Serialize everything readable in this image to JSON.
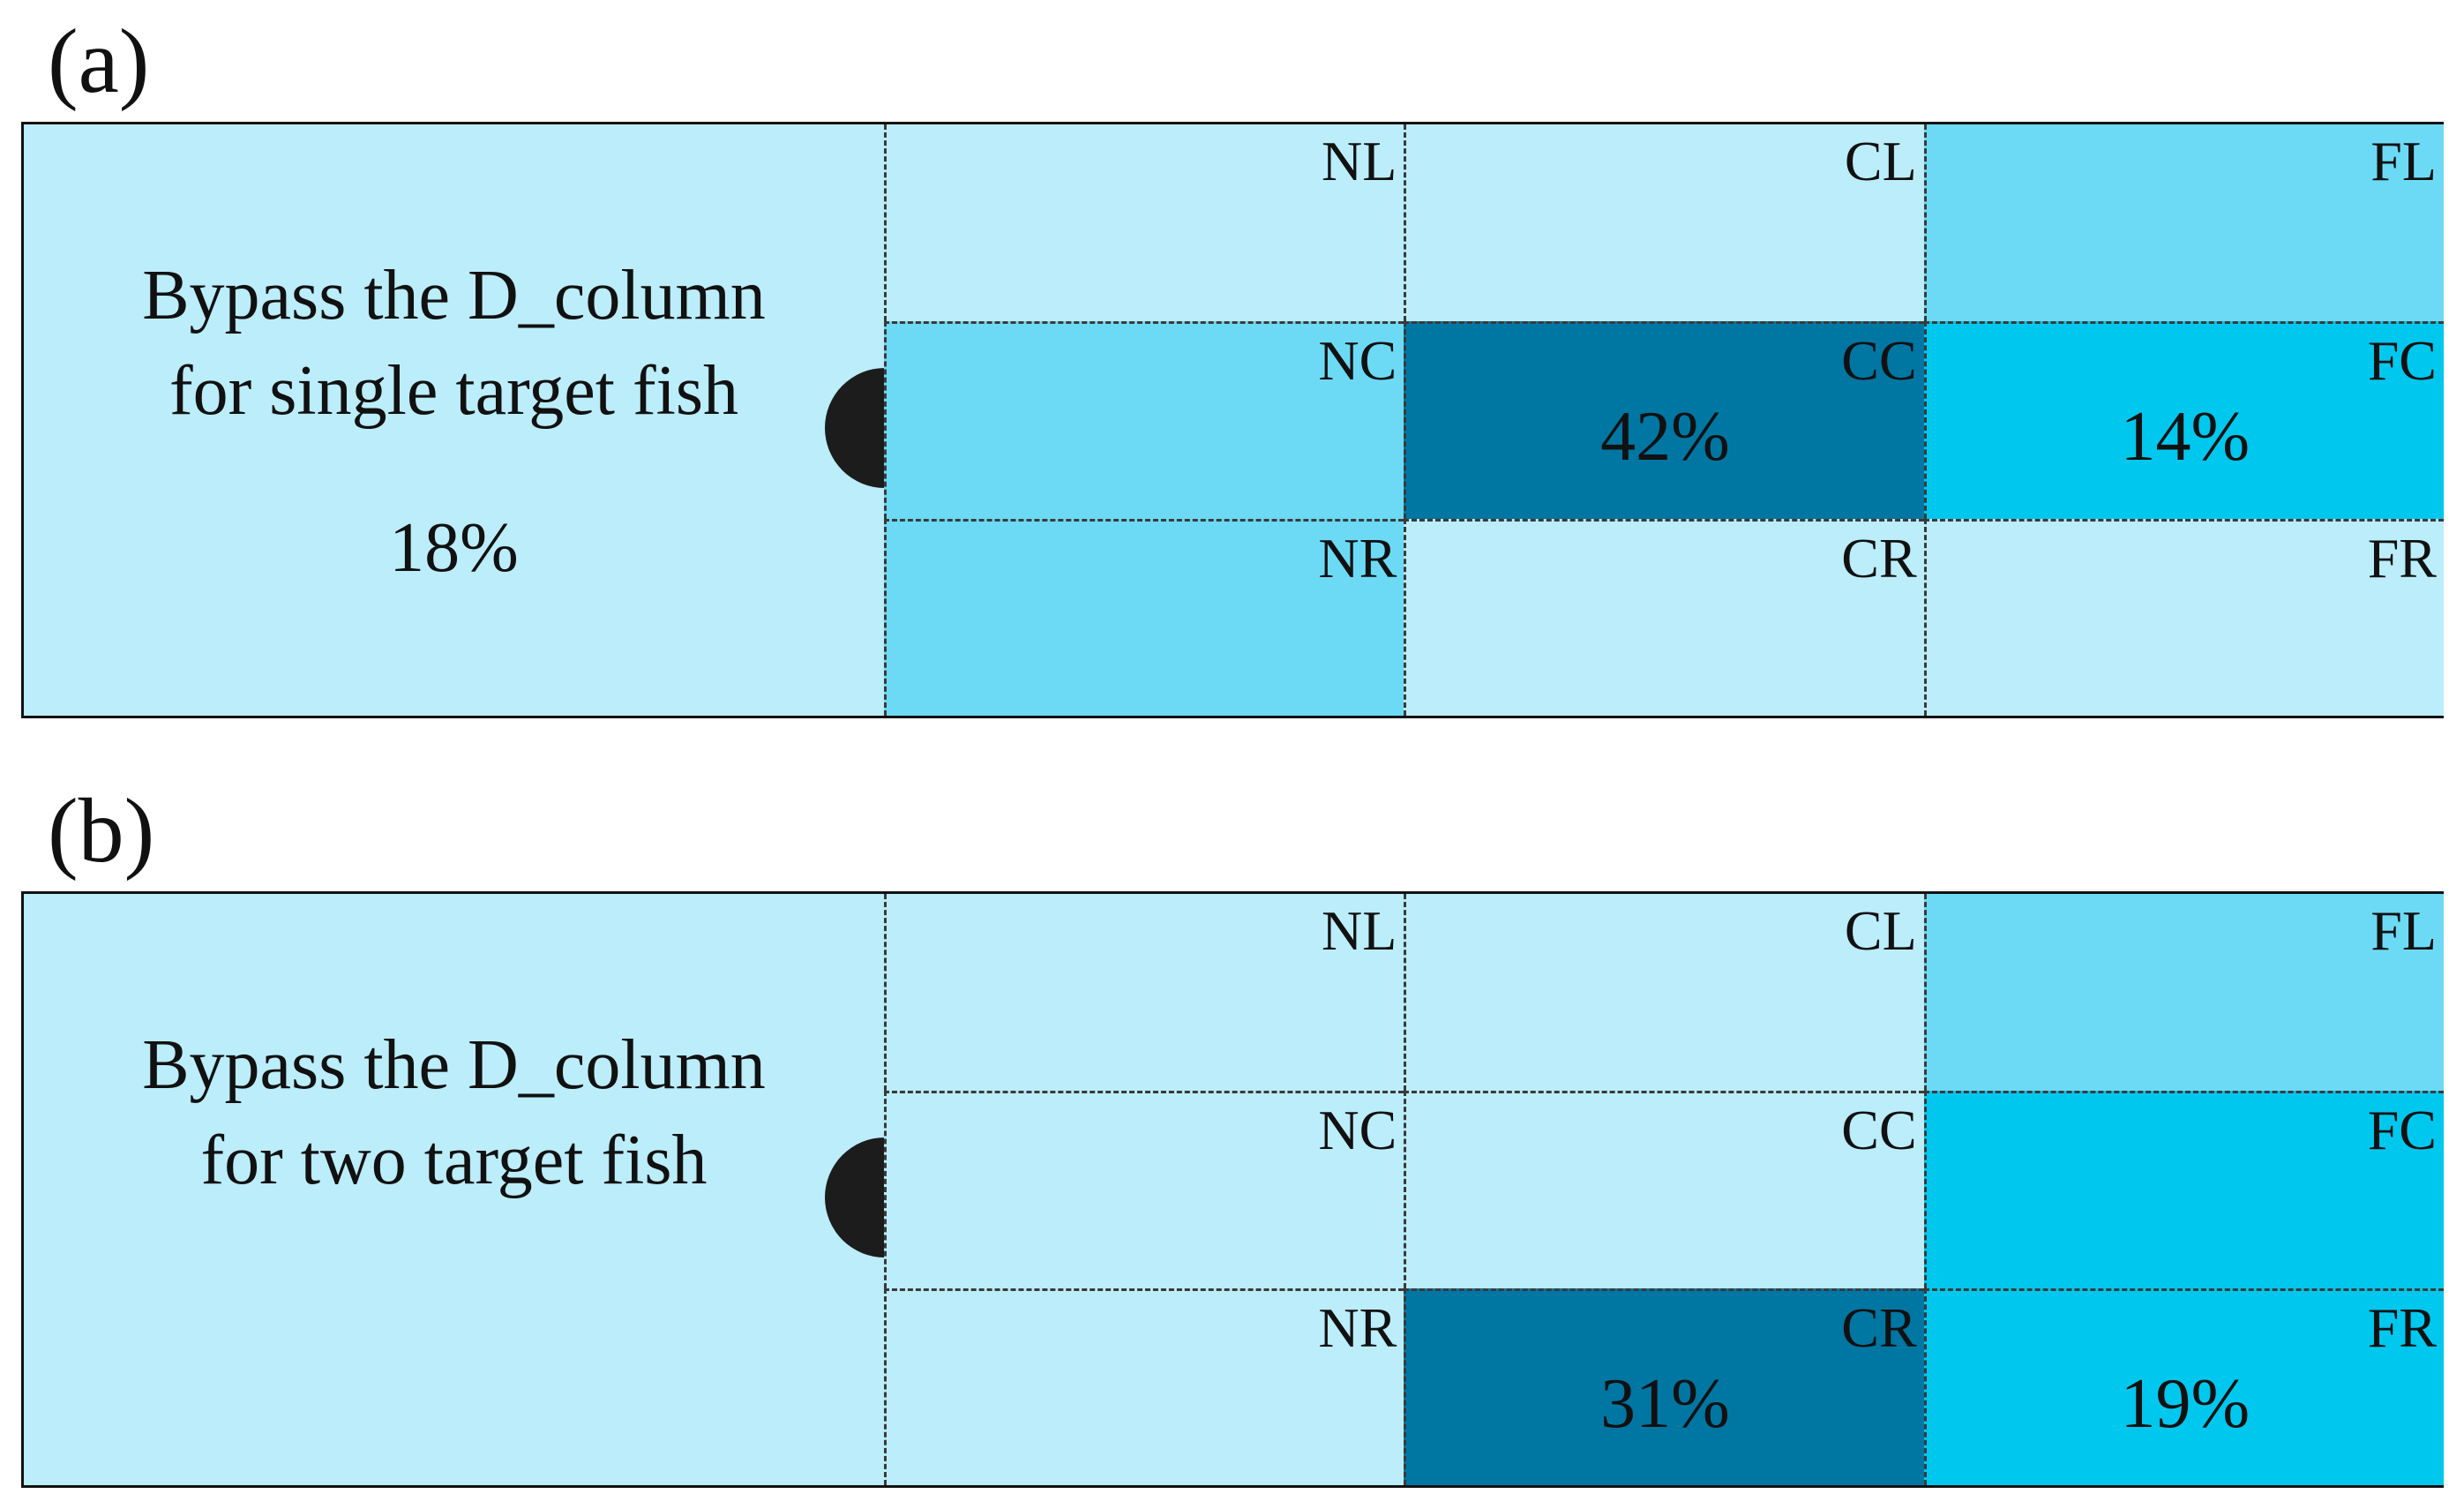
{
  "colors": {
    "light": "#bbedfb",
    "medium": "#6cdaf5",
    "bright": "#00c7ee",
    "dark": "#0076a3",
    "gate": "#1c1c1c",
    "grid_line": "#3a3a3a"
  },
  "panels": [
    {
      "label": "(a)",
      "bypass": {
        "line1": "Bypass the D_column",
        "line2": "for single target fish",
        "percent": "18%"
      },
      "gate_icon": "semicircle-gate-icon",
      "cells": [
        {
          "code": "NL",
          "percent": "",
          "shade": "light"
        },
        {
          "code": "CL",
          "percent": "",
          "shade": "light"
        },
        {
          "code": "FL",
          "percent": "",
          "shade": "medium"
        },
        {
          "code": "NC",
          "percent": "",
          "shade": "medium"
        },
        {
          "code": "CC",
          "percent": "42%",
          "shade": "dark"
        },
        {
          "code": "FC",
          "percent": "14%",
          "shade": "bright"
        },
        {
          "code": "NR",
          "percent": "",
          "shade": "medium"
        },
        {
          "code": "CR",
          "percent": "",
          "shade": "light"
        },
        {
          "code": "FR",
          "percent": "",
          "shade": "light"
        }
      ]
    },
    {
      "label": "(b)",
      "bypass": {
        "line1": "Bypass the D_column",
        "line2": "for two target fish",
        "percent": ""
      },
      "gate_icon": "semicircle-gate-icon",
      "cells": [
        {
          "code": "NL",
          "percent": "",
          "shade": "light"
        },
        {
          "code": "CL",
          "percent": "",
          "shade": "light"
        },
        {
          "code": "FL",
          "percent": "",
          "shade": "medium"
        },
        {
          "code": "NC",
          "percent": "",
          "shade": "light"
        },
        {
          "code": "CC",
          "percent": "",
          "shade": "light"
        },
        {
          "code": "FC",
          "percent": "",
          "shade": "bright"
        },
        {
          "code": "NR",
          "percent": "",
          "shade": "light"
        },
        {
          "code": "CR",
          "percent": "31%",
          "shade": "dark"
        },
        {
          "code": "FR",
          "percent": "19%",
          "shade": "bright"
        }
      ]
    }
  ]
}
